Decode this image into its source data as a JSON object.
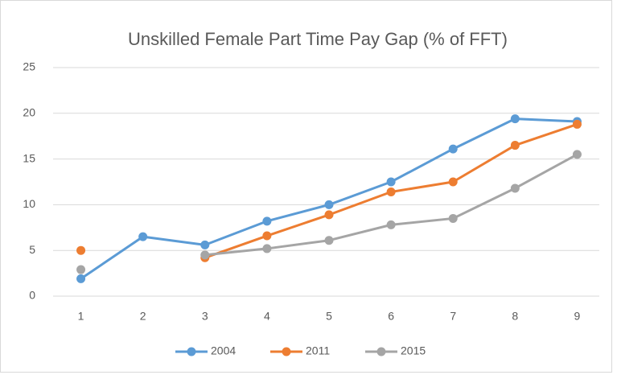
{
  "chart_data": {
    "type": "line",
    "title": "Unskilled Female Part Time Pay Gap (% of FFT)",
    "categories": [
      "1",
      "2",
      "3",
      "4",
      "5",
      "6",
      "7",
      "8",
      "9"
    ],
    "series": [
      {
        "name": "2004",
        "color": "#5b9bd5",
        "values": [
          1.9,
          6.5,
          5.6,
          8.2,
          10.0,
          12.5,
          16.1,
          19.4,
          19.1
        ]
      },
      {
        "name": "2011",
        "color": "#ed7d31",
        "values": [
          5.0,
          null,
          4.2,
          6.6,
          8.9,
          11.4,
          12.5,
          16.5,
          18.8
        ]
      },
      {
        "name": "2015",
        "color": "#a5a5a5",
        "values": [
          2.9,
          null,
          4.5,
          5.2,
          6.1,
          7.8,
          8.5,
          11.8,
          15.5
        ]
      }
    ],
    "ylim": [
      0,
      25
    ],
    "yticks": [
      0,
      5,
      10,
      15,
      20,
      25
    ],
    "grid": true,
    "legend": "bottom"
  }
}
